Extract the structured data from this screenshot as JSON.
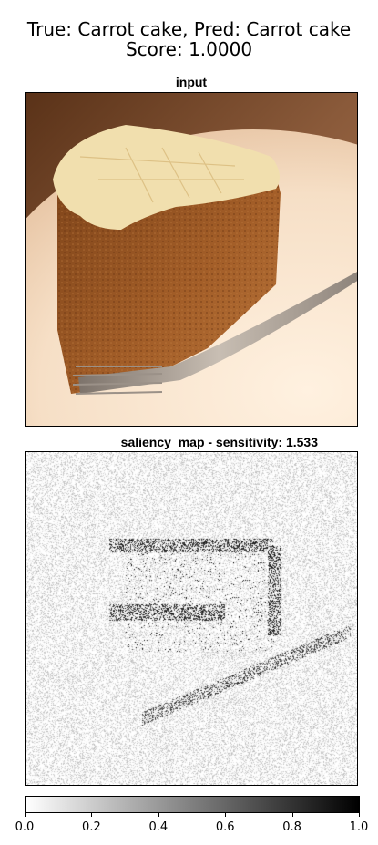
{
  "figure": {
    "title_line1": "True: Carrot cake, Pred: Carrot cake",
    "title_line2": "Score: 1.0000"
  },
  "panels": {
    "input_title": "input",
    "saliency_title": "saliency_map - sensitivity: 1.533"
  },
  "colors": {
    "plate": "#f4e3cf",
    "background_warm": "#6b3d1d",
    "cake": "#9b5a26",
    "frosting": "#f2e0b0",
    "fork": "#8a8077"
  },
  "chart_data": {
    "type": "heatmap",
    "title": "saliency_map - sensitivity: 1.533",
    "colormap": "gray_r",
    "colorbar": {
      "range": [
        0,
        1
      ],
      "ticks": [
        "0.0",
        "0.2",
        "0.4",
        "0.6",
        "0.8",
        "1.0"
      ]
    }
  }
}
